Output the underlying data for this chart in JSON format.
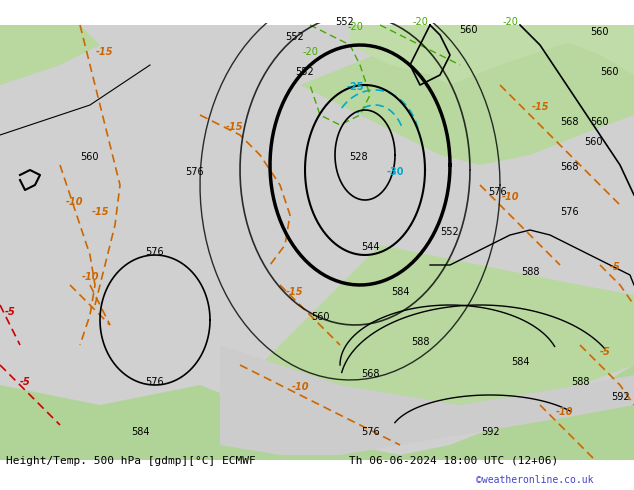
{
  "title_left": "Height/Temp. 500 hPa [gdmp][°C] ECMWF",
  "title_right": "Th 06-06-2024 18:00 UTC (12+06)",
  "copyright": "©weatheronline.co.uk",
  "bg_color": "#d0d0d0",
  "land_color_light": "#c8e6c0",
  "land_color_dark": "#a8d8a0",
  "ocean_color": "#d0d0d0",
  "title_fontsize": 9,
  "copyright_color": "#4444cc",
  "bottom_bar_color": "#ffffff"
}
